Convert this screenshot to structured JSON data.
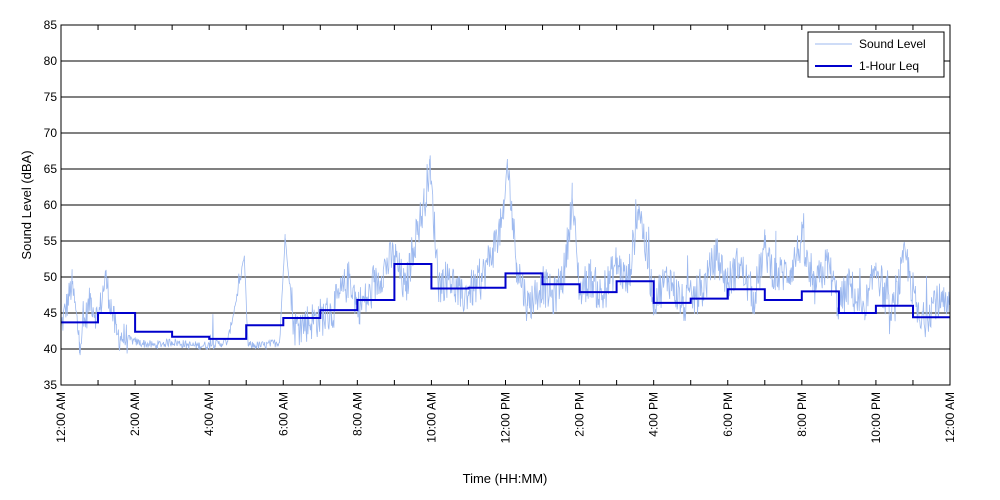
{
  "chart_data": {
    "type": "line",
    "xlabel": "Time (HH:MM)",
    "ylabel": "Sound Level (dBA)",
    "ylim": [
      35,
      85
    ],
    "xlim_hours": [
      0,
      24
    ],
    "y_ticks": [
      35,
      40,
      45,
      50,
      55,
      60,
      65,
      70,
      75,
      80,
      85
    ],
    "x_tick_labels": [
      "12:00 AM",
      "2:00 AM",
      "4:00 AM",
      "6:00 AM",
      "8:00 AM",
      "10:00 AM",
      "12:00 PM",
      "2:00 PM",
      "4:00 PM",
      "6:00 PM",
      "8:00 PM",
      "10:00 PM",
      "12:00 AM"
    ],
    "grid": "horizontal",
    "legend_position": "top-right",
    "series": [
      {
        "name": "Sound Level",
        "style": "thin-line",
        "color": "#9db9ef",
        "hours": [
          0,
          0.3,
          0.5,
          0.8,
          1,
          1.2,
          1.5,
          2,
          2.5,
          3,
          3.5,
          4,
          4.5,
          4.95,
          5.05,
          5.5,
          5.9,
          6.05,
          6.3,
          6.8,
          7.3,
          7.8,
          8,
          8.3,
          8.7,
          9,
          9.3,
          9.5,
          9.8,
          9.95,
          10.2,
          10.5,
          10.8,
          11,
          11.3,
          11.6,
          11.95,
          12.05,
          12.3,
          12.6,
          13,
          13.3,
          13.6,
          13.8,
          14,
          14.3,
          14.6,
          15,
          15.3,
          15.6,
          16,
          16.4,
          16.8,
          17.3,
          17.7,
          18,
          18.3,
          18.7,
          19,
          19.3,
          19.7,
          20,
          20.3,
          20.7,
          21,
          21.3,
          21.7,
          22,
          22.4,
          22.8,
          23.2,
          23.6,
          24
        ],
        "values": [
          43,
          49,
          41,
          47,
          44,
          50,
          42,
          41,
          40.5,
          41,
          40.5,
          40.5,
          41,
          52.5,
          40.5,
          40.5,
          41,
          55.5,
          43,
          44,
          45,
          50,
          46,
          47,
          51,
          53,
          48,
          54,
          60,
          65.5,
          49,
          50,
          47,
          48,
          49,
          53,
          58,
          66,
          52,
          46,
          49,
          47,
          51,
          61,
          48,
          50,
          47,
          52,
          49,
          60,
          47,
          50,
          46,
          48,
          53,
          49,
          52,
          47,
          54,
          50,
          51,
          55,
          48,
          52,
          46,
          49,
          44,
          52,
          44,
          53,
          43,
          47,
          45
        ]
      },
      {
        "name": "1-Hour Leq",
        "style": "step",
        "color": "#0000cc",
        "hours": [
          0,
          1,
          2,
          3,
          4,
          5,
          6,
          7,
          8,
          9,
          10,
          11,
          12,
          13,
          14,
          15,
          16,
          17,
          18,
          19,
          20,
          21,
          22,
          23
        ],
        "values": [
          43.7,
          45.0,
          42.4,
          41.7,
          41.4,
          43.3,
          44.3,
          45.4,
          46.8,
          51.8,
          48.4,
          48.5,
          50.5,
          49.0,
          47.9,
          49.4,
          46.4,
          47.0,
          48.3,
          46.8,
          48.0,
          45.0,
          46.0,
          44.4
        ]
      }
    ]
  }
}
